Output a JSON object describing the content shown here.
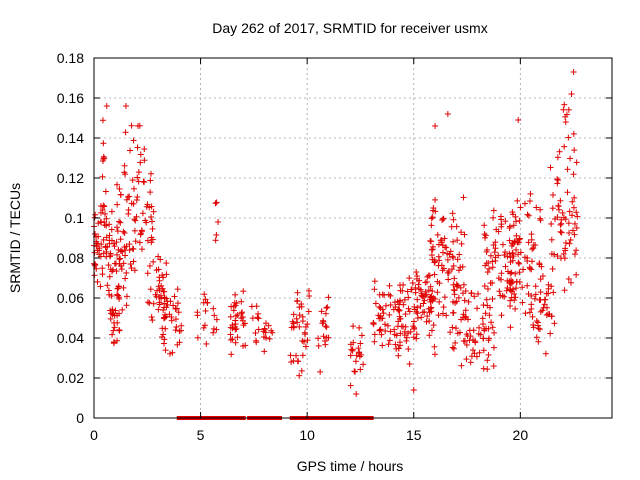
{
  "chart_data": {
    "type": "scatter",
    "title": "Day 262 of 2017, SRMTID for receiver usmx",
    "xlabel": "GPS time / hours",
    "ylabel": "SRMTID / TECUs",
    "xlim": [
      0,
      24.3
    ],
    "ylim": [
      0,
      0.18
    ],
    "grid": true,
    "marker": "plus",
    "color": "#e00000",
    "xticks": [
      0,
      5,
      10,
      15,
      20
    ],
    "xtick_labels": [
      "0",
      "5",
      "10",
      "15",
      "20"
    ],
    "yticks": [
      0,
      0.02,
      0.04,
      0.06,
      0.08,
      0.1,
      0.12,
      0.14,
      0.16,
      0.18
    ],
    "ytick_labels": [
      "0",
      "0.02",
      "0.04",
      "0.06",
      "0.08",
      "0.1",
      "0.12",
      "0.14",
      "0.16",
      "0.18"
    ],
    "clusters": [
      {
        "x_range": [
          0.0,
          1.0
        ],
        "y_range": [
          0.06,
          0.11
        ],
        "count": 70
      },
      {
        "x_range": [
          0.4,
          0.6
        ],
        "y_range": [
          0.1,
          0.16
        ],
        "count": 8
      },
      {
        "x_range": [
          0.7,
          1.2
        ],
        "y_range": [
          0.03,
          0.07
        ],
        "count": 25
      },
      {
        "x_range": [
          1.0,
          2.0
        ],
        "y_range": [
          0.05,
          0.12
        ],
        "count": 60
      },
      {
        "x_range": [
          1.4,
          2.3
        ],
        "y_range": [
          0.1,
          0.16
        ],
        "count": 14
      },
      {
        "x_range": [
          2.0,
          2.8
        ],
        "y_range": [
          0.07,
          0.14
        ],
        "count": 35
      },
      {
        "x_range": [
          2.5,
          3.4
        ],
        "y_range": [
          0.04,
          0.09
        ],
        "count": 40
      },
      {
        "x_range": [
          3.2,
          4.1
        ],
        "y_range": [
          0.03,
          0.07
        ],
        "count": 35
      },
      {
        "x_range": [
          4.8,
          5.8
        ],
        "y_range": [
          0.03,
          0.065
        ],
        "count": 18
      },
      {
        "x_range": [
          5.7,
          5.9
        ],
        "y_range": [
          0.08,
          0.115
        ],
        "count": 5
      },
      {
        "x_range": [
          6.4,
          7.1
        ],
        "y_range": [
          0.03,
          0.07
        ],
        "count": 35
      },
      {
        "x_range": [
          7.4,
          8.4
        ],
        "y_range": [
          0.03,
          0.06
        ],
        "count": 22
      },
      {
        "x_range": [
          9.2,
          10.1
        ],
        "y_range": [
          0.02,
          0.065
        ],
        "count": 38
      },
      {
        "x_range": [
          10.5,
          11.0
        ],
        "y_range": [
          0.02,
          0.07
        ],
        "count": 18
      },
      {
        "x_range": [
          12.0,
          12.7
        ],
        "y_range": [
          0.015,
          0.05
        ],
        "count": 22
      },
      {
        "x_range": [
          13.1,
          14.4
        ],
        "y_range": [
          0.03,
          0.07
        ],
        "count": 55
      },
      {
        "x_range": [
          14.2,
          16.0
        ],
        "y_range": [
          0.025,
          0.08
        ],
        "count": 95
      },
      {
        "x_range": [
          15.7,
          17.4
        ],
        "y_range": [
          0.04,
          0.12
        ],
        "count": 90
      },
      {
        "x_range": [
          16.8,
          18.8
        ],
        "y_range": [
          0.02,
          0.07
        ],
        "count": 80
      },
      {
        "x_range": [
          18.3,
          20.0
        ],
        "y_range": [
          0.05,
          0.11
        ],
        "count": 70
      },
      {
        "x_range": [
          19.5,
          21.0
        ],
        "y_range": [
          0.04,
          0.12
        ],
        "count": 75
      },
      {
        "x_range": [
          20.5,
          21.6
        ],
        "y_range": [
          0.03,
          0.08
        ],
        "count": 40
      },
      {
        "x_range": [
          21.4,
          22.7
        ],
        "y_range": [
          0.06,
          0.14
        ],
        "count": 60
      },
      {
        "x_range": [
          22.0,
          22.6
        ],
        "y_range": [
          0.13,
          0.17
        ],
        "count": 10
      }
    ],
    "highlight_points": [
      {
        "x": 22.5,
        "y": 0.173
      },
      {
        "x": 22.4,
        "y": 0.162
      },
      {
        "x": 0.6,
        "y": 0.156
      },
      {
        "x": 1.5,
        "y": 0.156
      },
      {
        "x": 16.6,
        "y": 0.152
      },
      {
        "x": 19.9,
        "y": 0.149
      },
      {
        "x": 16.0,
        "y": 0.146
      },
      {
        "x": 12.3,
        "y": 0.012
      },
      {
        "x": 15.0,
        "y": 0.014
      }
    ],
    "zero_segments": [
      [
        4.0,
        6.3
      ],
      [
        6.4,
        7.0
      ],
      [
        7.3,
        8.7
      ],
      [
        9.3,
        10.4
      ],
      [
        10.5,
        11.6
      ],
      [
        11.7,
        12.6
      ],
      [
        12.7,
        13.0
      ]
    ]
  }
}
